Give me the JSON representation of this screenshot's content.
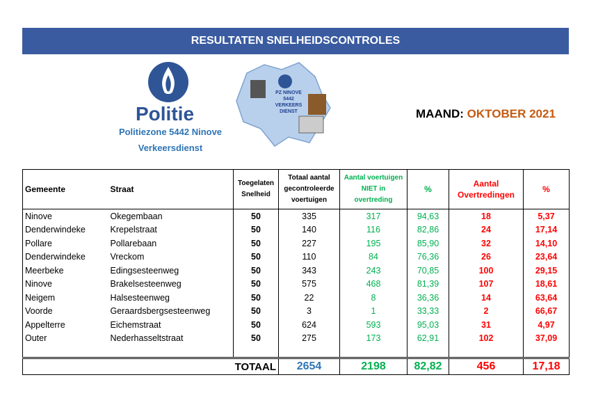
{
  "header": {
    "title": "RESULTATEN SNELHEIDSCONTROLES"
  },
  "logo": {
    "name": "Politie",
    "zone": "Politiezone 5442 Ninove",
    "department": "Verkeersdienst"
  },
  "badge": {
    "lines": [
      "PZ NINOVE",
      "5442",
      "VERKEERS",
      "DIENST"
    ]
  },
  "month": {
    "label": "MAAND:",
    "value": "OKTOBER 2021"
  },
  "table": {
    "headers": [
      "Gemeente",
      "Straat",
      "Toegelaten Snelheid",
      "Totaal aantal gecontroleerde voertuigen",
      "Aantal voertuigen NIET in overtreding",
      "%",
      "Aantal Overtredingen",
      "%"
    ],
    "rows": [
      [
        "Ninove",
        "Okegembaan",
        "50",
        "335",
        "317",
        "94,63",
        "18",
        "5,37"
      ],
      [
        "Denderwindeke",
        "Krepelstraat",
        "50",
        "140",
        "116",
        "82,86",
        "24",
        "17,14"
      ],
      [
        "Pollare",
        "Pollarebaan",
        "50",
        "227",
        "195",
        "85,90",
        "32",
        "14,10"
      ],
      [
        "Denderwindeke",
        "Vreckom",
        "50",
        "110",
        "84",
        "76,36",
        "26",
        "23,64"
      ],
      [
        "Meerbeke",
        "Edingsesteenweg",
        "50",
        "343",
        "243",
        "70,85",
        "100",
        "29,15"
      ],
      [
        "Ninove",
        "Brakelsesteenweg",
        "50",
        "575",
        "468",
        "81,39",
        "107",
        "18,61"
      ],
      [
        "Neigem",
        "Halsesteenweg",
        "50",
        "22",
        "8",
        "36,36",
        "14",
        "63,64"
      ],
      [
        "Voorde",
        "Geraardsbergsesteenweg",
        "50",
        "3",
        "1",
        "33,33",
        "2",
        "66,67"
      ],
      [
        "Appelterre",
        "Eichemstraat",
        "50",
        "624",
        "593",
        "95,03",
        "31",
        "4,97"
      ],
      [
        "Outer",
        "Nederhasseltstraat",
        "50",
        "275",
        "173",
        "62,91",
        "102",
        "37,09"
      ]
    ],
    "totals": {
      "label": "TOTAAL",
      "values": [
        "2654",
        "2198",
        "82,82",
        "456",
        "17,18"
      ]
    }
  }
}
